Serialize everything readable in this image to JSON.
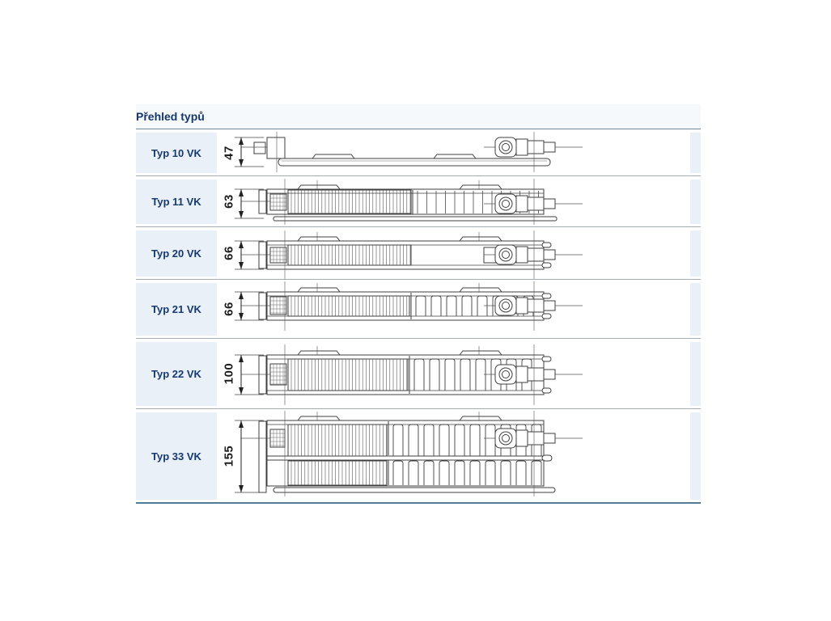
{
  "title": "Přehled typů",
  "table": {
    "rows": [
      {
        "type": "10",
        "label": "Typ 10 VK",
        "dimension_mm": "47"
      },
      {
        "type": "11",
        "label": "Typ 11 VK",
        "dimension_mm": "63"
      },
      {
        "type": "20",
        "label": "Typ 20 VK",
        "dimension_mm": "66"
      },
      {
        "type": "21",
        "label": "Typ 21 VK",
        "dimension_mm": "66"
      },
      {
        "type": "22",
        "label": "Typ 22 VK",
        "dimension_mm": "100"
      },
      {
        "type": "33",
        "label": "Typ 33 VK",
        "dimension_mm": "155"
      }
    ]
  },
  "colors": {
    "heading_text": "#16376b",
    "row_label_bg": "#e9f0f8",
    "accent_line_top": "#6e8ba3",
    "accent_line_bottom": "#557b94",
    "separator_line": "#a6acb3",
    "drawing_stroke": "#3f3f3f"
  }
}
